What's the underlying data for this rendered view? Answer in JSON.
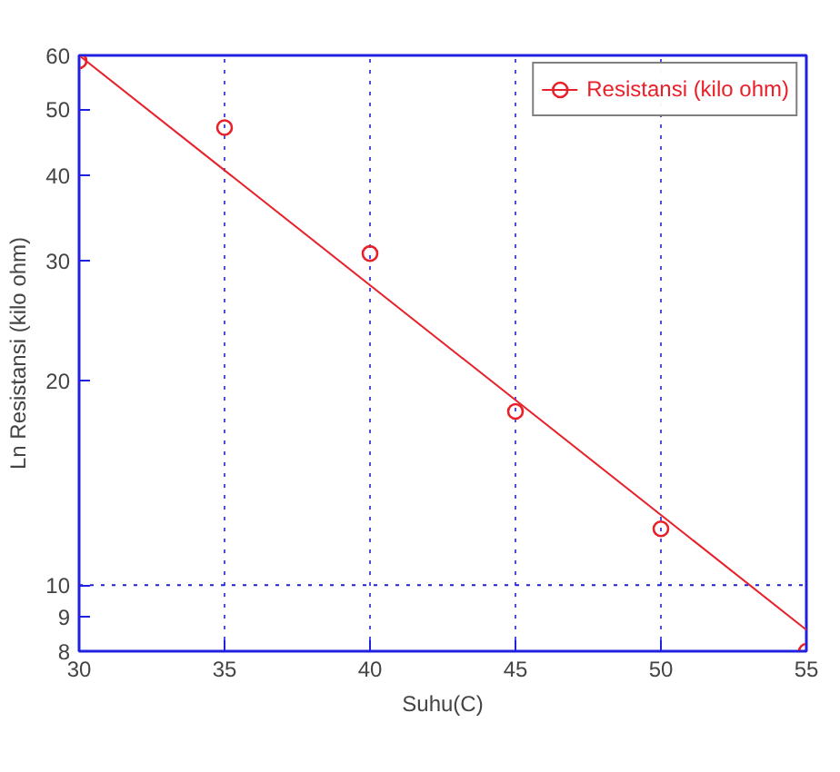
{
  "chart_data": {
    "type": "scatter",
    "xlabel": "Suhu(C)",
    "ylabel": "Ln Resistansi (kilo ohm)",
    "x": [
      30,
      35,
      40,
      45,
      50,
      55
    ],
    "series": [
      {
        "name": "Resistansi (kilo ohm)",
        "color": "#e8202a",
        "marker": "circle",
        "values": [
          58.9,
          47,
          30.7,
          18,
          12.1,
          8
        ]
      },
      {
        "color": "#e8202a",
        "type": "line",
        "x": [
          30,
          55
        ],
        "values": [
          60,
          8.6
        ]
      }
    ],
    "log": "y",
    "xlim": [
      30,
      55
    ],
    "ylim": [
      8,
      60
    ],
    "xticks": [
      30,
      35,
      40,
      45,
      50,
      55
    ],
    "yticks": [
      8,
      9,
      10,
      20,
      30,
      40,
      50,
      60
    ],
    "grid": "x",
    "ref_lines": [
      {
        "axis": "y",
        "value": 10,
        "color": "#2020e0",
        "line_style": "dotted"
      }
    ],
    "legend": "top right"
  }
}
